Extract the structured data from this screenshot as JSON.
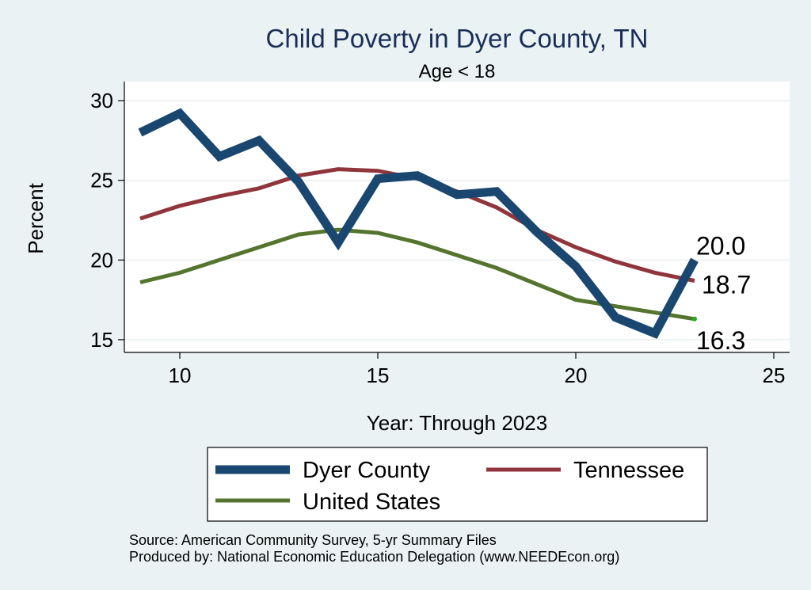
{
  "chart_data": {
    "type": "line",
    "title": "Child Poverty in Dyer County, TN",
    "subtitle": "Age < 18",
    "xlabel": "Year: Through 2023",
    "ylabel": "Percent",
    "xlim": [
      8.6,
      25.4
    ],
    "ylim": [
      14.2,
      31.2
    ],
    "x_ticks": [
      10,
      15,
      20,
      25
    ],
    "y_ticks": [
      15,
      20,
      25,
      30
    ],
    "grid": true,
    "legend_position": "bottom",
    "x": [
      9,
      10,
      11,
      12,
      13,
      14,
      15,
      16,
      17,
      18,
      19,
      20,
      21,
      22,
      23
    ],
    "series": [
      {
        "name": "Dyer County",
        "color": "#1a476f",
        "values": [
          28.0,
          29.2,
          26.5,
          27.5,
          24.9,
          21.1,
          25.1,
          25.3,
          24.1,
          24.3,
          21.8,
          19.6,
          16.4,
          15.4,
          20.0
        ],
        "end_label": "20.0"
      },
      {
        "name": "Tennessee",
        "color": "#90353b",
        "values": [
          22.6,
          23.4,
          24.0,
          24.5,
          25.3,
          25.7,
          25.6,
          25.1,
          24.3,
          23.3,
          21.9,
          20.8,
          19.9,
          19.2,
          18.7
        ],
        "end_label": "18.7"
      },
      {
        "name": "United States",
        "color": "#55752f",
        "values": [
          18.6,
          19.2,
          20.0,
          20.8,
          21.6,
          21.9,
          21.7,
          21.1,
          20.3,
          19.5,
          18.5,
          17.5,
          17.1,
          16.7,
          16.3
        ],
        "end_label": "16.3"
      }
    ]
  },
  "footer": {
    "source_line": "Source: American Community Survey, 5-yr Summary Files",
    "produced_line": "Produced by: National Economic Education Delegation (www.NEEDEcon.org)"
  }
}
